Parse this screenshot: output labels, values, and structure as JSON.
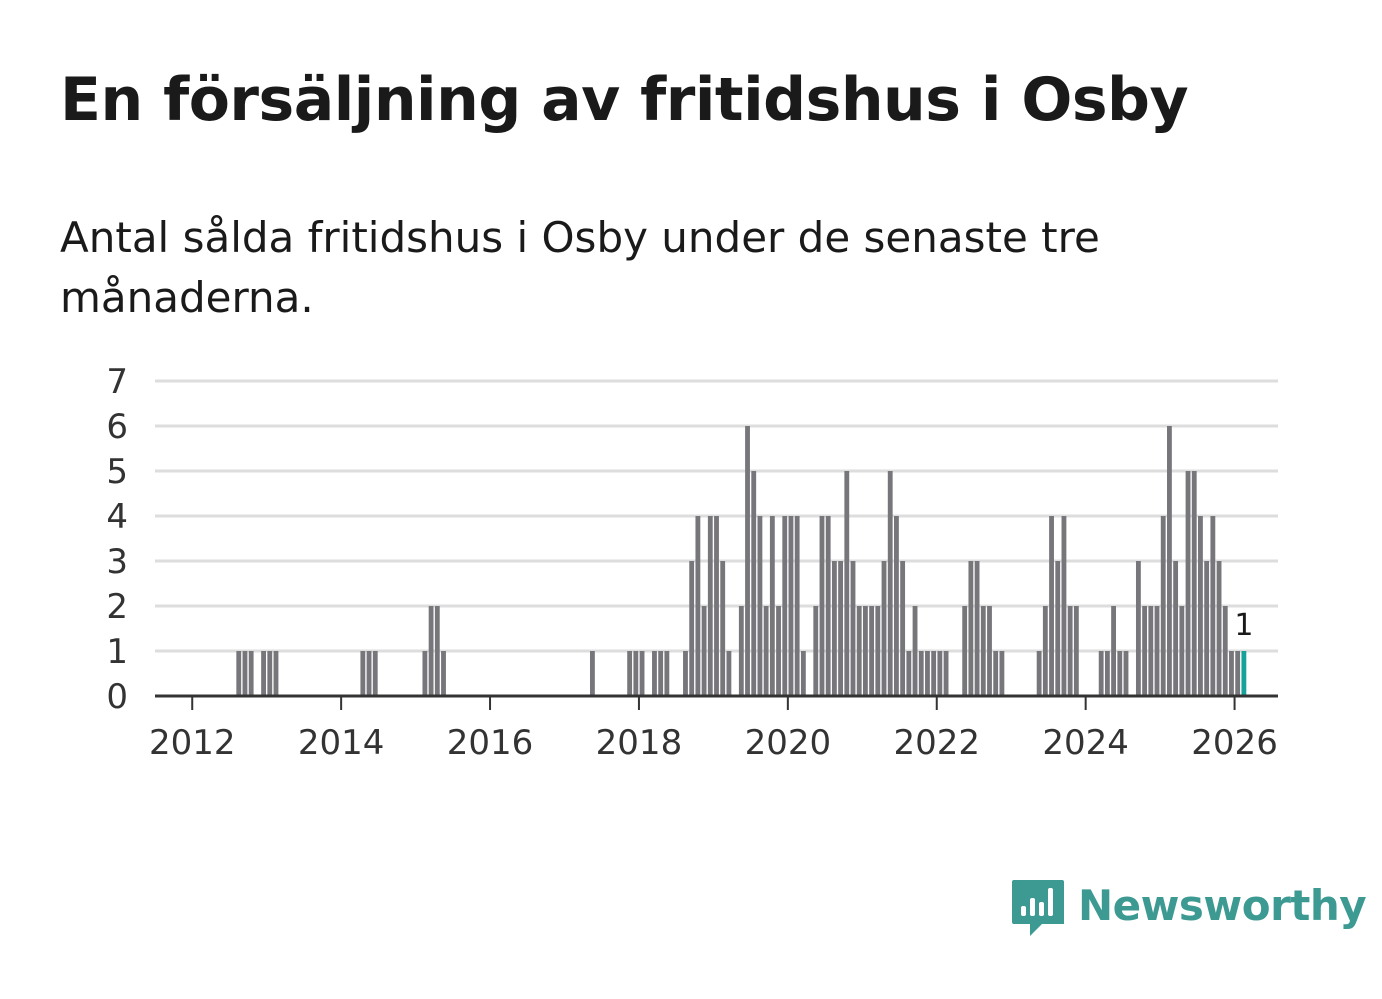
{
  "title": "En försäljning av fritidshus i Osby",
  "subtitle": "Antal sålda fritidshus i Osby under de senaste tre månaderna.",
  "brand": {
    "name": "Newsworthy",
    "icon": "bar-chart-speech-bubble-icon",
    "color": "#3d9a93"
  },
  "colors": {
    "bar": "#77767b",
    "highlight": "#16a19a",
    "grid": "#dddddd",
    "axis": "#333333"
  },
  "chart_data": {
    "type": "bar",
    "title": "En försäljning av fritidshus i Osby",
    "xlabel": "",
    "ylabel": "",
    "x_start": "2011-07",
    "x_end": "2026-08",
    "ylim": [
      0,
      7
    ],
    "yticks": [
      0,
      1,
      2,
      3,
      4,
      5,
      6,
      7
    ],
    "xticks": [
      2012,
      2014,
      2016,
      2018,
      2020,
      2022,
      2024,
      2026
    ],
    "grid": true,
    "bars": [
      {
        "date": "2012-08",
        "value": 1
      },
      {
        "date": "2012-09",
        "value": 1
      },
      {
        "date": "2012-10",
        "value": 1
      },
      {
        "date": "2012-12",
        "value": 1
      },
      {
        "date": "2013-01",
        "value": 1
      },
      {
        "date": "2013-02",
        "value": 1
      },
      {
        "date": "2014-04",
        "value": 1
      },
      {
        "date": "2014-05",
        "value": 1
      },
      {
        "date": "2014-06",
        "value": 1
      },
      {
        "date": "2015-02",
        "value": 1
      },
      {
        "date": "2015-03",
        "value": 2
      },
      {
        "date": "2015-04",
        "value": 2
      },
      {
        "date": "2015-05",
        "value": 1
      },
      {
        "date": "2017-05",
        "value": 1
      },
      {
        "date": "2017-11",
        "value": 1
      },
      {
        "date": "2017-12",
        "value": 1
      },
      {
        "date": "2018-01",
        "value": 1
      },
      {
        "date": "2018-03",
        "value": 1
      },
      {
        "date": "2018-04",
        "value": 1
      },
      {
        "date": "2018-05",
        "value": 1
      },
      {
        "date": "2018-08",
        "value": 1
      },
      {
        "date": "2018-09",
        "value": 3
      },
      {
        "date": "2018-10",
        "value": 4
      },
      {
        "date": "2018-11",
        "value": 2
      },
      {
        "date": "2018-12",
        "value": 4
      },
      {
        "date": "2019-01",
        "value": 4
      },
      {
        "date": "2019-02",
        "value": 3
      },
      {
        "date": "2019-03",
        "value": 1
      },
      {
        "date": "2019-05",
        "value": 2
      },
      {
        "date": "2019-06",
        "value": 6
      },
      {
        "date": "2019-07",
        "value": 5
      },
      {
        "date": "2019-08",
        "value": 4
      },
      {
        "date": "2019-09",
        "value": 2
      },
      {
        "date": "2019-10",
        "value": 4
      },
      {
        "date": "2019-11",
        "value": 2
      },
      {
        "date": "2019-12",
        "value": 4
      },
      {
        "date": "2020-01",
        "value": 4
      },
      {
        "date": "2020-02",
        "value": 4
      },
      {
        "date": "2020-03",
        "value": 1
      },
      {
        "date": "2020-05",
        "value": 2
      },
      {
        "date": "2020-06",
        "value": 4
      },
      {
        "date": "2020-07",
        "value": 4
      },
      {
        "date": "2020-08",
        "value": 3
      },
      {
        "date": "2020-09",
        "value": 3
      },
      {
        "date": "2020-10",
        "value": 5
      },
      {
        "date": "2020-11",
        "value": 3
      },
      {
        "date": "2020-12",
        "value": 2
      },
      {
        "date": "2021-01",
        "value": 2
      },
      {
        "date": "2021-02",
        "value": 2
      },
      {
        "date": "2021-03",
        "value": 2
      },
      {
        "date": "2021-04",
        "value": 3
      },
      {
        "date": "2021-05",
        "value": 5
      },
      {
        "date": "2021-06",
        "value": 4
      },
      {
        "date": "2021-07",
        "value": 3
      },
      {
        "date": "2021-08",
        "value": 1
      },
      {
        "date": "2021-09",
        "value": 2
      },
      {
        "date": "2021-10",
        "value": 1
      },
      {
        "date": "2021-11",
        "value": 1
      },
      {
        "date": "2021-12",
        "value": 1
      },
      {
        "date": "2022-01",
        "value": 1
      },
      {
        "date": "2022-02",
        "value": 1
      },
      {
        "date": "2022-05",
        "value": 2
      },
      {
        "date": "2022-06",
        "value": 3
      },
      {
        "date": "2022-07",
        "value": 3
      },
      {
        "date": "2022-08",
        "value": 2
      },
      {
        "date": "2022-09",
        "value": 2
      },
      {
        "date": "2022-10",
        "value": 1
      },
      {
        "date": "2022-11",
        "value": 1
      },
      {
        "date": "2023-05",
        "value": 1
      },
      {
        "date": "2023-06",
        "value": 2
      },
      {
        "date": "2023-07",
        "value": 4
      },
      {
        "date": "2023-08",
        "value": 3
      },
      {
        "date": "2023-09",
        "value": 4
      },
      {
        "date": "2023-10",
        "value": 2
      },
      {
        "date": "2023-11",
        "value": 2
      },
      {
        "date": "2024-03",
        "value": 1
      },
      {
        "date": "2024-04",
        "value": 1
      },
      {
        "date": "2024-05",
        "value": 2
      },
      {
        "date": "2024-06",
        "value": 1
      },
      {
        "date": "2024-07",
        "value": 1
      },
      {
        "date": "2024-09",
        "value": 3
      },
      {
        "date": "2024-10",
        "value": 2
      },
      {
        "date": "2024-11",
        "value": 2
      },
      {
        "date": "2024-12",
        "value": 2
      },
      {
        "date": "2025-01",
        "value": 4
      },
      {
        "date": "2025-02",
        "value": 6
      },
      {
        "date": "2025-03",
        "value": 3
      },
      {
        "date": "2025-04",
        "value": 2
      },
      {
        "date": "2025-05",
        "value": 5
      },
      {
        "date": "2025-06",
        "value": 5
      },
      {
        "date": "2025-07",
        "value": 4
      },
      {
        "date": "2025-08",
        "value": 3
      },
      {
        "date": "2025-09",
        "value": 4
      },
      {
        "date": "2025-10",
        "value": 3
      },
      {
        "date": "2025-11",
        "value": 2
      },
      {
        "date": "2025-12",
        "value": 1
      },
      {
        "date": "2026-01",
        "value": 1
      },
      {
        "date": "2026-02",
        "value": 1,
        "highlight": true
      }
    ],
    "annotation": {
      "date": "2026-02",
      "text": "1"
    }
  }
}
